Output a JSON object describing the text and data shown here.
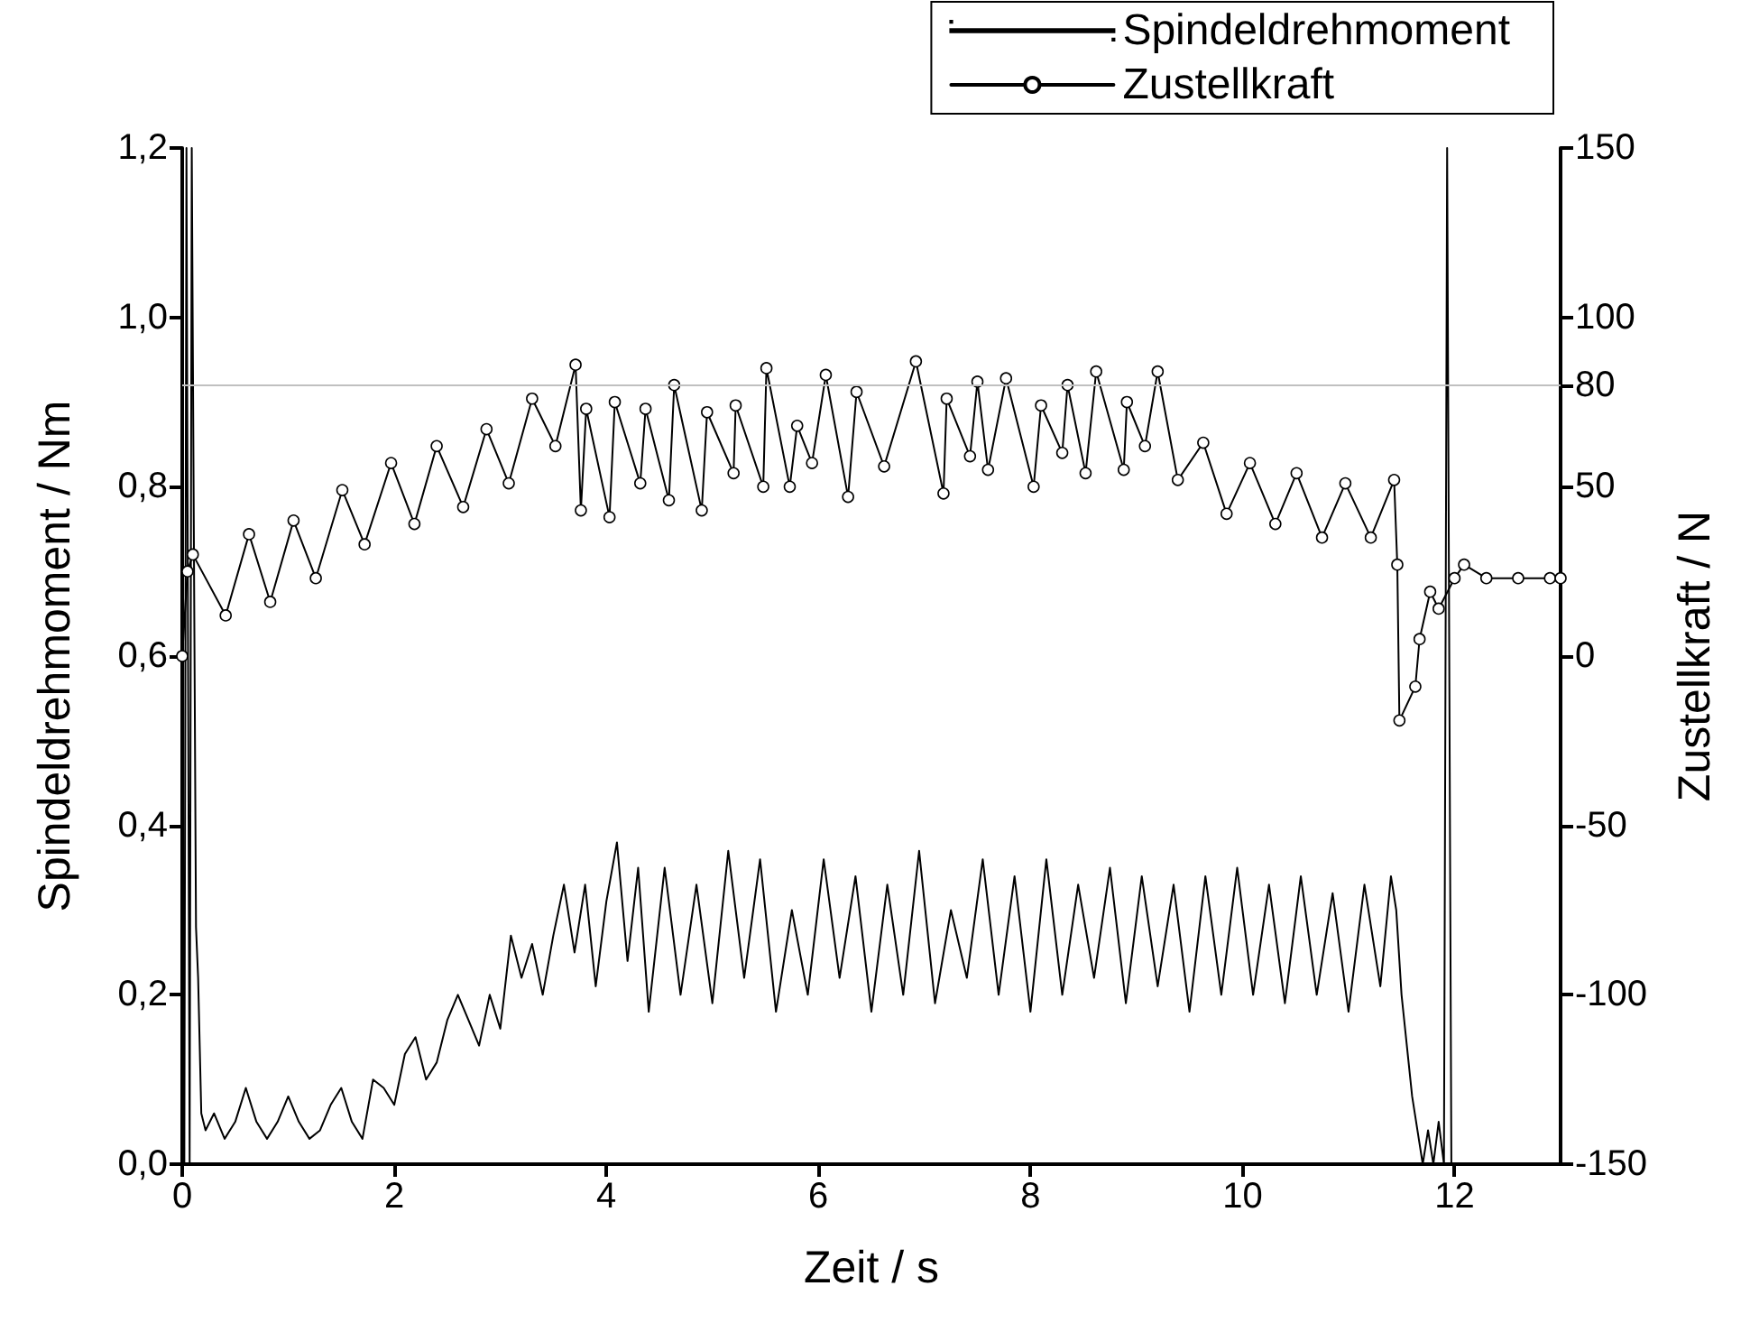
{
  "chart_data": {
    "type": "line",
    "xlabel": "Zeit / s",
    "ylabel": "Spindeldrehmoment / Nm",
    "y2label": "Zustellkraft / N",
    "xlim": [
      0,
      13
    ],
    "xticks": [
      0,
      2,
      4,
      6,
      8,
      10,
      12
    ],
    "ylim": [
      0,
      1.2
    ],
    "yticks": [
      {
        "value": 0,
        "label": "0,0"
      },
      {
        "value": 0.2,
        "label": "0,2"
      },
      {
        "value": 0.4,
        "label": "0,4"
      },
      {
        "value": 0.6,
        "label": "0,6"
      },
      {
        "value": 0.8,
        "label": "0,8"
      },
      {
        "value": 1.0,
        "label": "1,0"
      },
      {
        "value": 1.2,
        "label": "1,2"
      }
    ],
    "y2lim": [
      -150,
      150
    ],
    "y2ticks": [
      -150,
      -100,
      -50,
      0,
      50,
      80,
      100,
      150
    ],
    "grid": false,
    "legend": "top right",
    "line_style": "solid",
    "ref_lines": [
      {
        "axis": "y2",
        "value": 80,
        "label": null,
        "color": "#c0c0c0"
      }
    ],
    "series": [
      {
        "name": "Spindeldrehmoment",
        "color": "#000000",
        "marker": "none",
        "x": [
          0.02,
          0.04,
          0.07,
          0.09,
          0.13,
          0.15,
          0.18,
          0.22,
          0.3,
          0.4,
          0.5,
          0.6,
          0.7,
          0.8,
          0.9,
          1.0,
          1.1,
          1.2,
          1.3,
          1.4,
          1.5,
          1.6,
          1.7,
          1.8,
          1.9,
          2.0,
          2.1,
          2.2,
          2.3,
          2.4,
          2.5,
          2.6,
          2.7,
          2.8,
          2.9,
          3.0,
          3.1,
          3.2,
          3.3,
          3.4,
          3.5,
          3.6,
          3.7,
          3.8,
          3.9,
          4.0,
          4.1,
          4.2,
          4.3,
          4.4,
          4.55,
          4.7,
          4.85,
          5.0,
          5.15,
          5.3,
          5.45,
          5.6,
          5.75,
          5.9,
          6.05,
          6.2,
          6.35,
          6.5,
          6.65,
          6.8,
          6.95,
          7.1,
          7.25,
          7.4,
          7.55,
          7.7,
          7.85,
          8.0,
          8.15,
          8.3,
          8.45,
          8.6,
          8.75,
          8.9,
          9.05,
          9.2,
          9.35,
          9.5,
          9.65,
          9.8,
          9.95,
          10.1,
          10.25,
          10.4,
          10.55,
          10.7,
          10.85,
          11.0,
          11.15,
          11.3,
          11.4,
          11.45,
          11.5,
          11.6,
          11.7,
          11.75,
          11.8,
          11.85,
          11.9,
          11.93,
          11.97
        ],
        "values": [
          0,
          1.2,
          0,
          1.2,
          0.28,
          0.22,
          0.06,
          0.04,
          0.06,
          0.03,
          0.05,
          0.09,
          0.05,
          0.03,
          0.05,
          0.08,
          0.05,
          0.03,
          0.04,
          0.07,
          0.09,
          0.05,
          0.03,
          0.1,
          0.09,
          0.07,
          0.13,
          0.15,
          0.1,
          0.12,
          0.17,
          0.2,
          0.17,
          0.14,
          0.2,
          0.16,
          0.27,
          0.22,
          0.26,
          0.2,
          0.27,
          0.33,
          0.25,
          0.33,
          0.21,
          0.31,
          0.38,
          0.24,
          0.35,
          0.18,
          0.35,
          0.2,
          0.33,
          0.19,
          0.37,
          0.22,
          0.36,
          0.18,
          0.3,
          0.2,
          0.36,
          0.22,
          0.34,
          0.18,
          0.33,
          0.2,
          0.37,
          0.19,
          0.3,
          0.22,
          0.36,
          0.2,
          0.34,
          0.18,
          0.36,
          0.2,
          0.33,
          0.22,
          0.35,
          0.19,
          0.34,
          0.21,
          0.33,
          0.18,
          0.34,
          0.2,
          0.35,
          0.2,
          0.33,
          0.19,
          0.34,
          0.2,
          0.32,
          0.18,
          0.33,
          0.21,
          0.34,
          0.3,
          0.2,
          0.08,
          0,
          0.04,
          0,
          0.05,
          0,
          1.2,
          0
        ]
      },
      {
        "name": "Zustellkraft",
        "color": "#000000",
        "marker": "circle",
        "axis": "y2",
        "x": [
          0,
          0.05,
          0.1,
          0.41,
          0.63,
          0.83,
          1.05,
          1.26,
          1.51,
          1.72,
          1.97,
          2.19,
          2.4,
          2.65,
          2.87,
          3.08,
          3.3,
          3.52,
          3.71,
          3.76,
          3.81,
          4.03,
          4.08,
          4.32,
          4.37,
          4.59,
          4.64,
          4.9,
          4.95,
          5.2,
          5.22,
          5.48,
          5.51,
          5.73,
          5.8,
          5.94,
          6.07,
          6.28,
          6.36,
          6.62,
          6.92,
          7.18,
          7.21,
          7.43,
          7.5,
          7.6,
          7.77,
          8.03,
          8.1,
          8.3,
          8.35,
          8.52,
          8.62,
          8.88,
          8.91,
          9.08,
          9.2,
          9.39,
          9.63,
          9.85,
          10.07,
          10.31,
          10.51,
          10.75,
          10.97,
          11.21,
          11.43,
          11.46,
          11.48,
          11.63,
          11.67,
          11.77,
          11.85,
          12.0,
          12.09,
          12.3,
          12.6,
          12.9,
          13.0
        ],
        "values": [
          0,
          25,
          30,
          12,
          36,
          16,
          40,
          23,
          49,
          33,
          57,
          39,
          62,
          44,
          67,
          51,
          76,
          62,
          86,
          43,
          73,
          41,
          75,
          51,
          73,
          46,
          80,
          43,
          72,
          54,
          74,
          50,
          85,
          50,
          68,
          57,
          83,
          47,
          78,
          56,
          87,
          48,
          76,
          59,
          81,
          55,
          82,
          50,
          74,
          60,
          80,
          54,
          84,
          55,
          75,
          62,
          84,
          52,
          63,
          42,
          57,
          39,
          54,
          35,
          51,
          35,
          52,
          27,
          -19,
          -9,
          5,
          19,
          14,
          23,
          27,
          23,
          23,
          23,
          23
        ]
      }
    ]
  }
}
